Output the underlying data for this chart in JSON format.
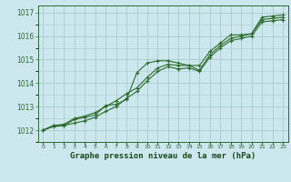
{
  "title": "Graphe pression niveau de la mer (hPa)",
  "bg_color": "#cce8ee",
  "grid_color": "#aacccc",
  "line_color": "#2d6b2d",
  "marker_color": "#2d6b2d",
  "xlabel_color": "#1a4a1a",
  "series1": [
    1012.0,
    1012.2,
    1012.2,
    1012.45,
    1012.55,
    1012.65,
    1013.05,
    1013.1,
    1013.3,
    1014.45,
    1014.85,
    1014.95,
    1014.95,
    1014.85,
    1014.75,
    1014.75,
    1015.35,
    1015.7,
    1016.05,
    1016.05,
    1016.1,
    1016.8,
    1016.85,
    1016.9
  ],
  "series2": [
    1012.0,
    1012.2,
    1012.25,
    1012.5,
    1012.6,
    1012.75,
    1013.0,
    1013.25,
    1013.55,
    1013.8,
    1014.25,
    1014.65,
    1014.8,
    1014.75,
    1014.75,
    1014.55,
    1015.2,
    1015.6,
    1015.9,
    1016.0,
    1016.1,
    1016.7,
    1016.75,
    1016.8
  ],
  "series3": [
    1012.0,
    1012.15,
    1012.2,
    1012.3,
    1012.4,
    1012.55,
    1012.8,
    1013.0,
    1013.35,
    1013.65,
    1014.1,
    1014.5,
    1014.7,
    1014.6,
    1014.65,
    1014.5,
    1015.1,
    1015.5,
    1015.8,
    1015.9,
    1016.0,
    1016.6,
    1016.65,
    1016.7
  ],
  "x_labels": [
    "0",
    "1",
    "2",
    "3",
    "4",
    "5",
    "6",
    "7",
    "8",
    "9",
    "10",
    "11",
    "12",
    "13",
    "14",
    "15",
    "16",
    "17",
    "18",
    "19",
    "20",
    "21",
    "22",
    "23"
  ],
  "ylim": [
    1011.5,
    1017.3
  ],
  "yticks": [
    1012,
    1013,
    1014,
    1015,
    1016,
    1017
  ],
  "xlim": [
    -0.5,
    23.5
  ]
}
